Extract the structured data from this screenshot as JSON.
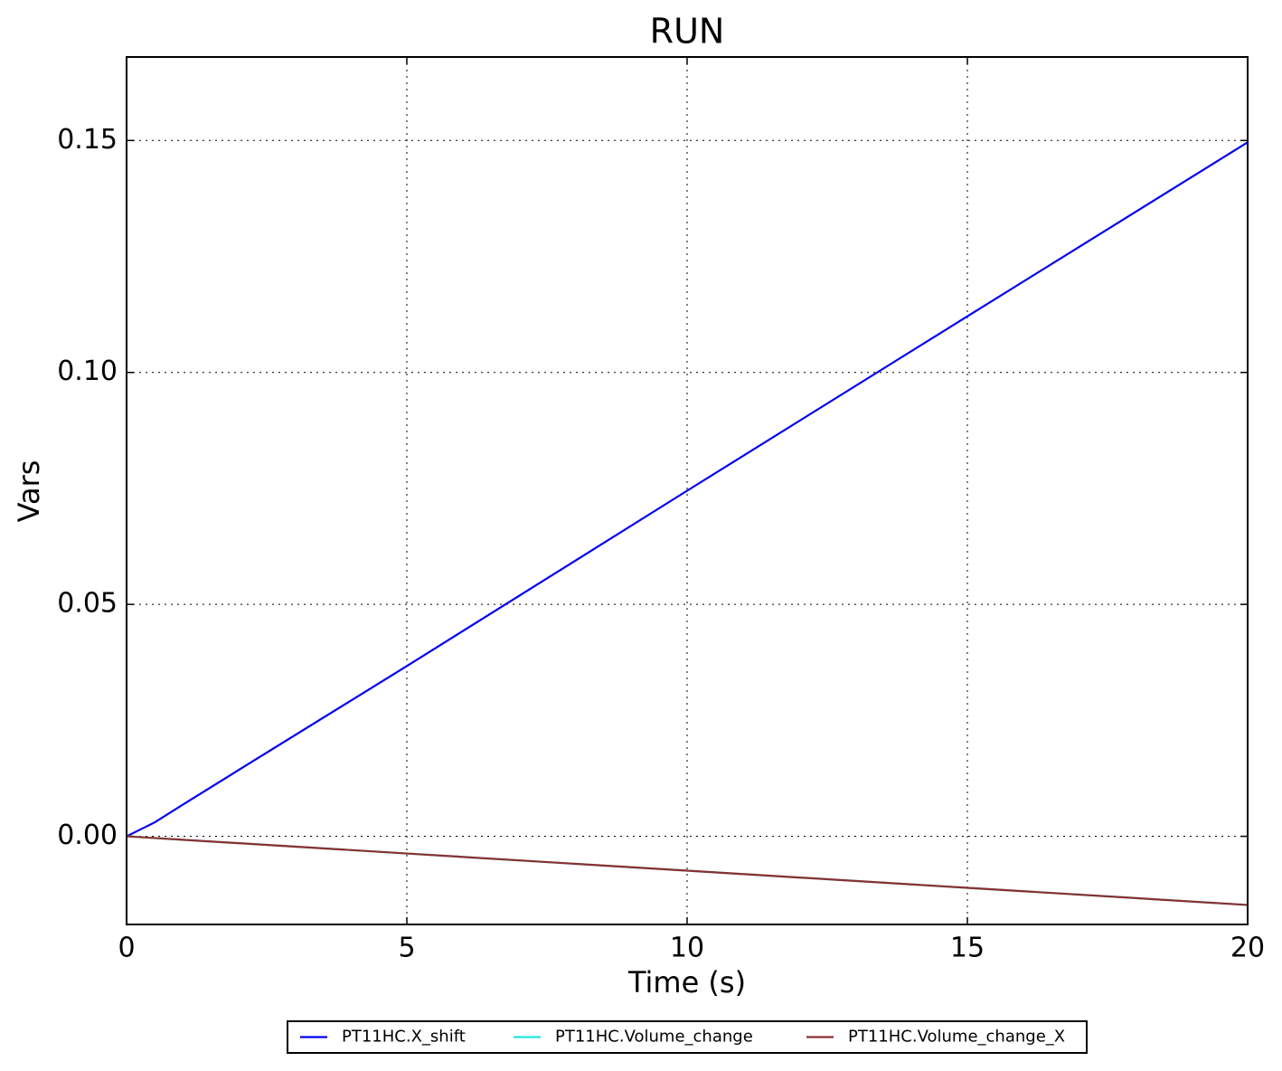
{
  "chart_data": {
    "type": "line",
    "title": "RUN",
    "xlabel": "Time (s)",
    "ylabel": "Vars",
    "x": [
      0,
      0.5,
      1,
      2,
      5,
      10,
      15,
      20
    ],
    "series": [
      {
        "name": "PT11HC.X_shift",
        "color": "#0000ee",
        "values": [
          0,
          0.003,
          0.0068,
          0.0143,
          0.0367,
          0.0745,
          0.1121,
          0.1496
        ]
      },
      {
        "name": "PT11HC.Volume_change",
        "color": "#22e5e5",
        "values": [
          0,
          -0.00037,
          -0.00074,
          -0.00148,
          -0.0037,
          -0.0074,
          -0.0111,
          -0.0148
        ]
      },
      {
        "name": "PT11HC.Volume_change_X",
        "color": "#8b3030",
        "values": [
          0,
          -0.00037,
          -0.00074,
          -0.00148,
          -0.0037,
          -0.0074,
          -0.0111,
          -0.0148
        ]
      }
    ],
    "xlim": [
      0,
      20
    ],
    "ylim": [
      -0.019,
      0.168
    ],
    "xticks": [
      0,
      5,
      10,
      15,
      20
    ],
    "yticks": [
      {
        "value": 0,
        "label": "0.00"
      },
      {
        "value": 0.05,
        "label": "0.05"
      },
      {
        "value": 0.1,
        "label": "0.10"
      },
      {
        "value": 0.15,
        "label": "0.15"
      }
    ],
    "grid": true,
    "legend": "bottom"
  }
}
